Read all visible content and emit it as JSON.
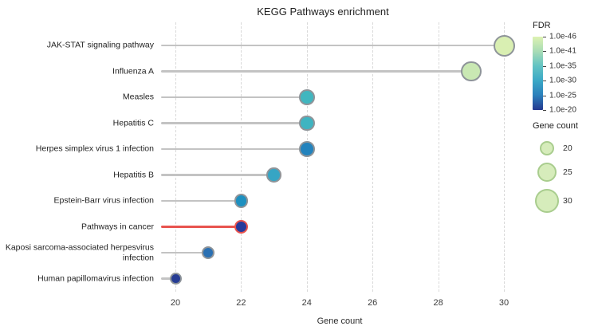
{
  "title": "KEGG Pathways enrichment",
  "chart_data": {
    "type": "lollipop",
    "title": "KEGG Pathways enrichment",
    "xlabel": "Gene count",
    "x_ticks": [
      20,
      22,
      24,
      26,
      28,
      30
    ],
    "x_range": [
      19.5,
      30.5
    ],
    "grid": "dashed-vertical",
    "categories": [
      "JAK-STAT signaling pathway",
      "Influenza A",
      "Measles",
      "Hepatitis C",
      "Herpes simplex virus 1 infection",
      "Hepatitis B",
      "Epstein-Barr virus infection",
      "Pathways in cancer",
      "Kaposi sarcoma-associated herpesvirus infection",
      "Human papillomavirus infection"
    ],
    "values": [
      30,
      29,
      24,
      24,
      24,
      23,
      22,
      22,
      21,
      20
    ],
    "point_colors": [
      "#d9efb2",
      "#c9e8b3",
      "#41b6bf",
      "#3fb4c1",
      "#2383bd",
      "#36a5c4",
      "#1d90c0",
      "#273a9b",
      "#2a70b3",
      "#263c94"
    ],
    "highlight_index": 7,
    "highlight_color": "#e8534e",
    "stem_color": "#c3c3c3",
    "point_border_color": "#8e9499",
    "legend_fdr": {
      "title": "FDR",
      "labels": [
        "1.0e-46",
        "1.0e-41",
        "1.0e-35",
        "1.0e-30",
        "1.0e-25",
        "1.0e-20"
      ],
      "gradient": [
        "#ddf2b2",
        "#a8dcb5",
        "#62c3c3",
        "#3aa8c6",
        "#2b7fbb",
        "#25388f"
      ],
      "legend_position": "right"
    },
    "legend_size": {
      "title": "Gene count",
      "sizes": [
        20,
        25,
        30
      ],
      "fill": "#d6ecbb",
      "border": "#a9cd8e",
      "legend_position": "right"
    }
  }
}
